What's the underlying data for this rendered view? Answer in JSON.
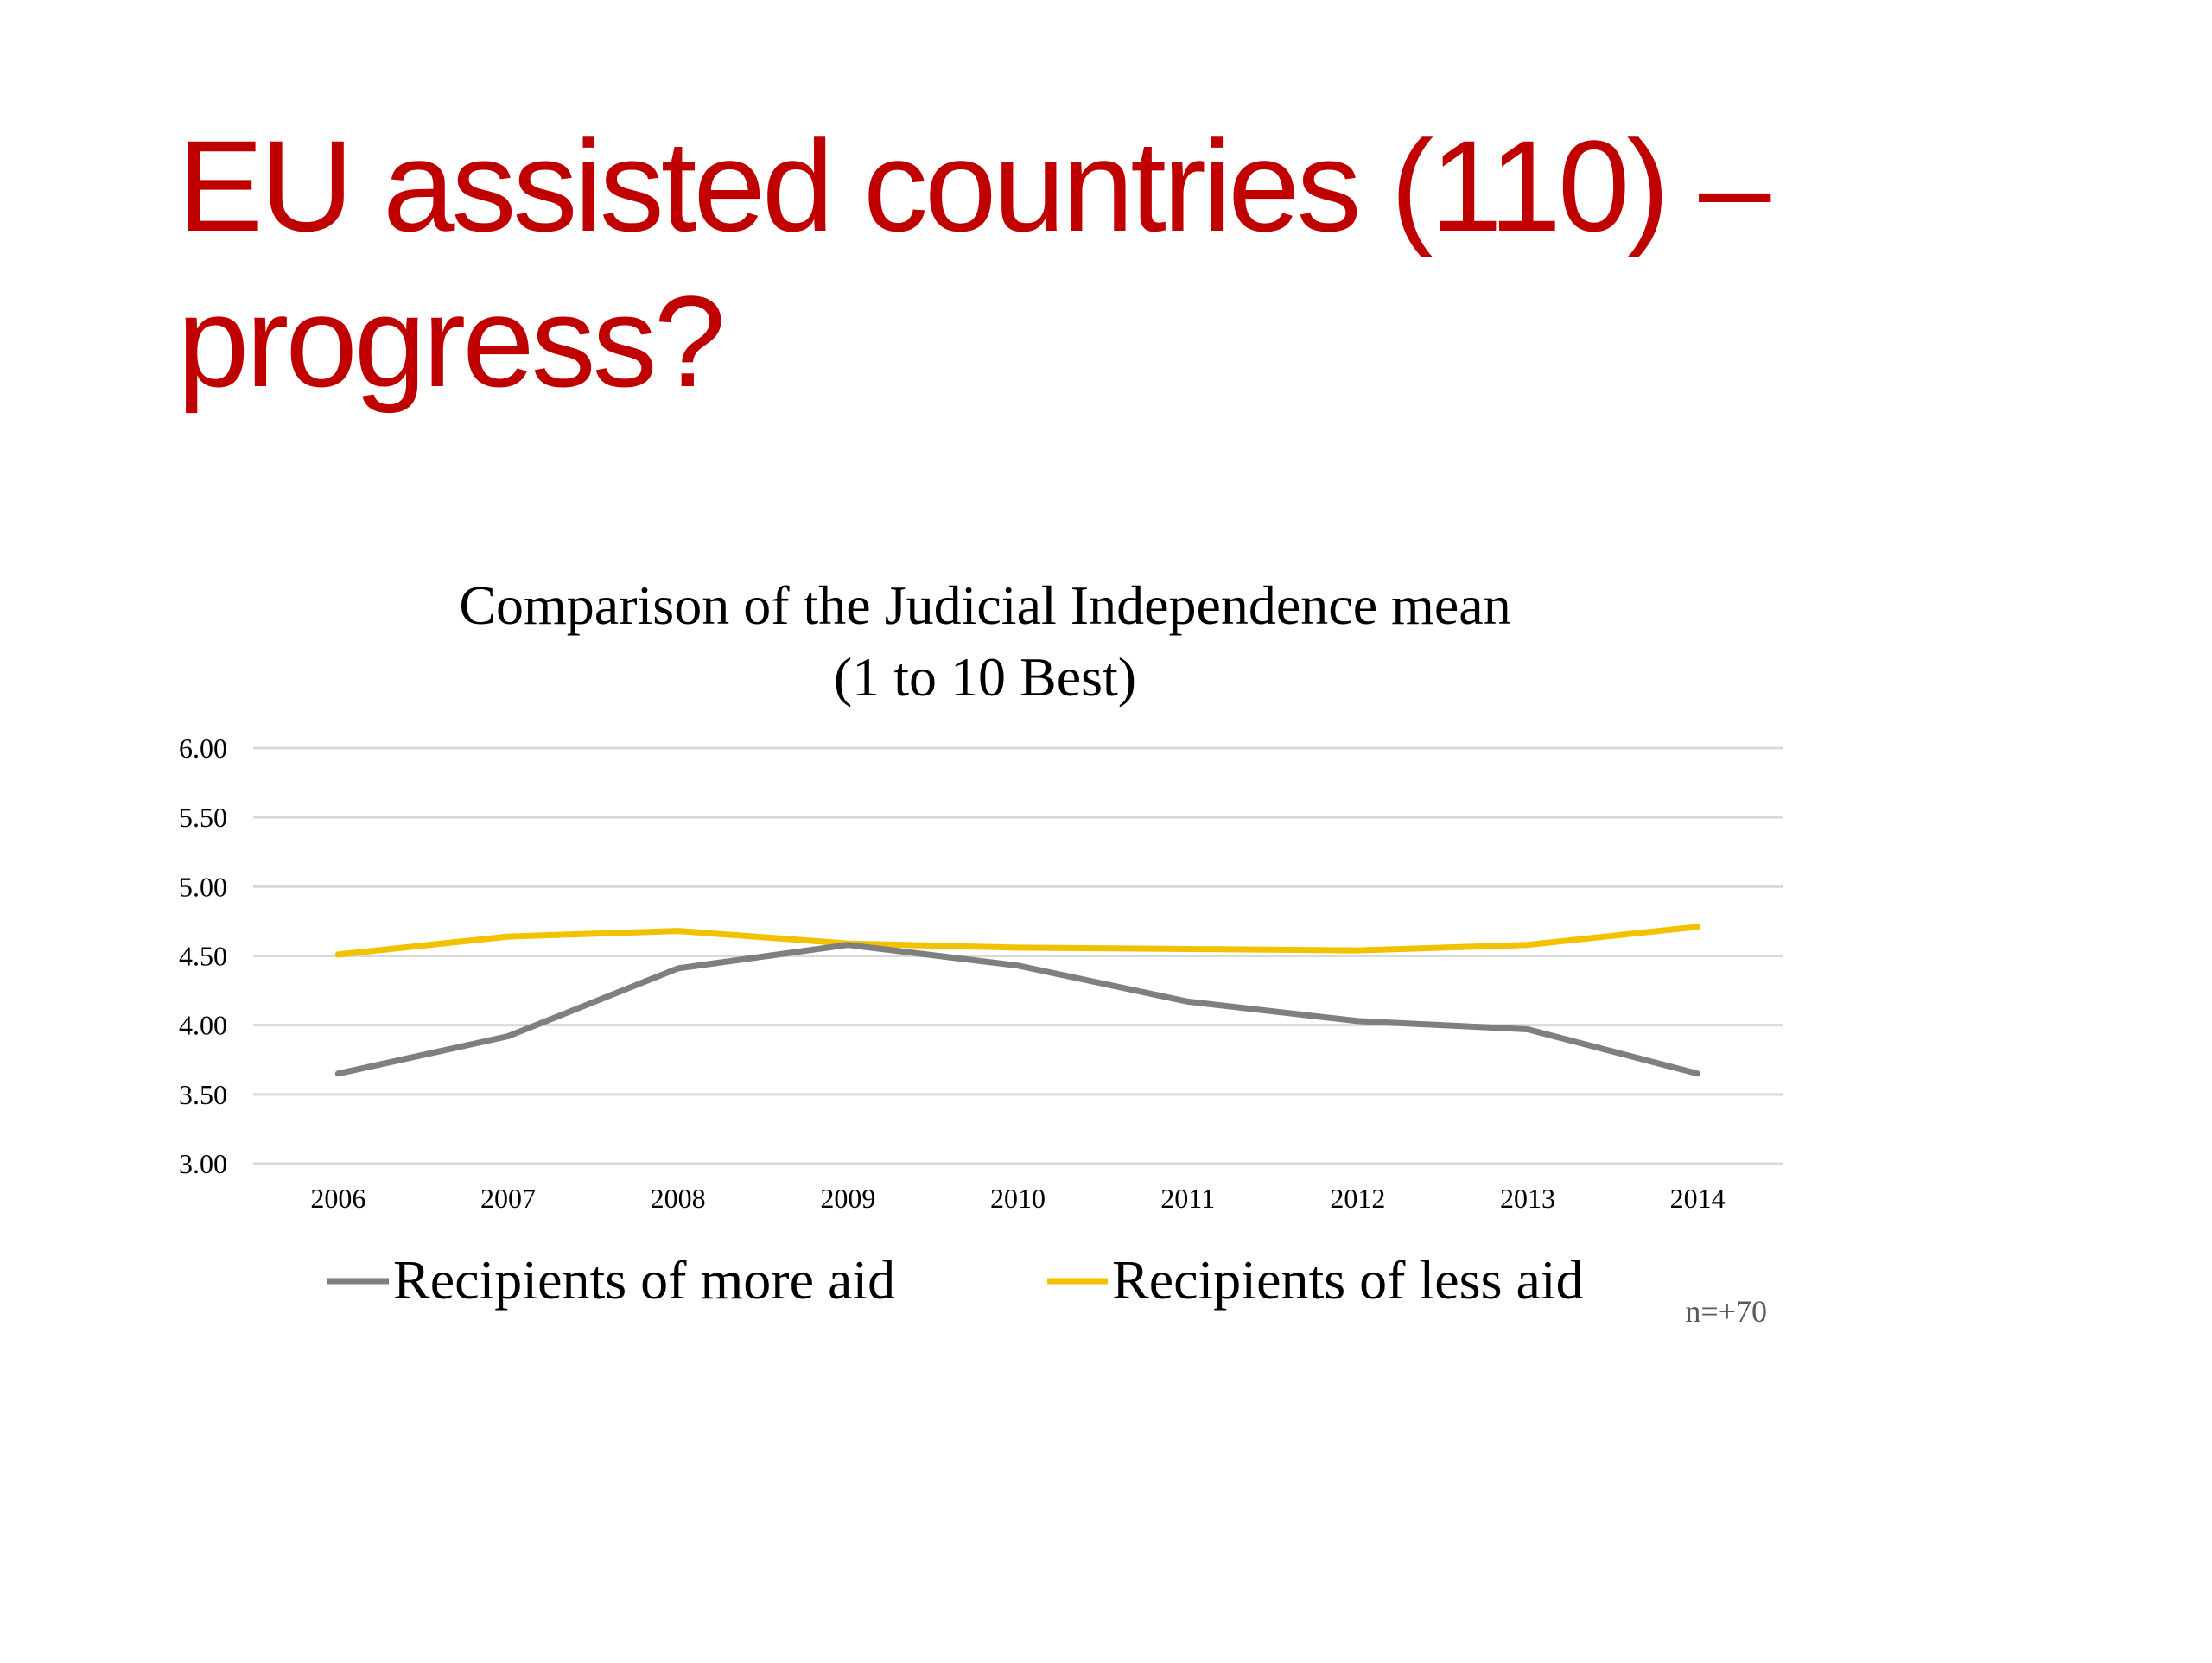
{
  "slide": {
    "title_line1": "EU assisted countries (110) –",
    "title_line2": "progress?"
  },
  "colors": {
    "title": "#c00000",
    "series_more_aid": "#7f7f7f",
    "series_less_aid": "#f2c200",
    "gridline": "#d9d9d9"
  },
  "chart_data": {
    "type": "line",
    "title": "Comparison of the Judicial Independence mean",
    "subtitle": "(1 to 10 Best)",
    "xlabel": "",
    "ylabel": "",
    "categories": [
      "2006",
      "2007",
      "2008",
      "2009",
      "2010",
      "2011",
      "2012",
      "2013",
      "2014"
    ],
    "ylim": [
      3.0,
      6.0
    ],
    "yticks": [
      "3.00",
      "3.50",
      "4.00",
      "4.50",
      "5.00",
      "5.50",
      "6.00"
    ],
    "grid": true,
    "legend_position": "bottom",
    "series": [
      {
        "name": "Recipients of more aid",
        "color": "#7f7f7f",
        "values": [
          3.65,
          3.92,
          4.41,
          4.58,
          4.43,
          4.17,
          4.03,
          3.97,
          3.65
        ]
      },
      {
        "name": "Recipients of less aid",
        "color": "#f2c200",
        "values": [
          4.51,
          4.64,
          4.68,
          4.59,
          4.56,
          4.55,
          4.54,
          4.58,
          4.71
        ]
      }
    ],
    "annotation": "n=+70"
  }
}
